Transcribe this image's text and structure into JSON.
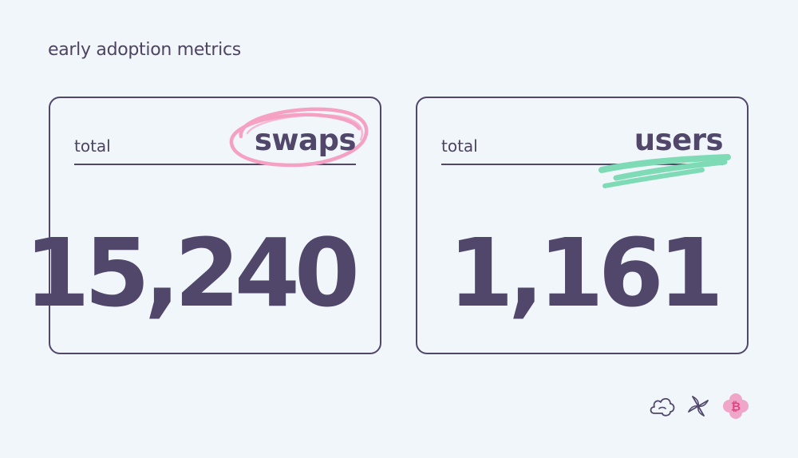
{
  "title": "early adoption metrics",
  "cards": [
    {
      "label": "total",
      "keyword": "swaps",
      "value": "15,240",
      "highlight": "circle",
      "highlight_color": "#f4a1c4"
    },
    {
      "label": "total",
      "keyword": "users",
      "value": "1,161",
      "highlight": "underline",
      "highlight_color": "#7fdbb6"
    }
  ],
  "logos": [
    {
      "icon": "cloud-outline-icon"
    },
    {
      "icon": "pinwheel-outline-icon"
    },
    {
      "icon": "bitcoin-flower-icon",
      "color": "#f0a6c8"
    }
  ],
  "colors": {
    "background": "#f1f6fb",
    "ink": "#50476a"
  }
}
